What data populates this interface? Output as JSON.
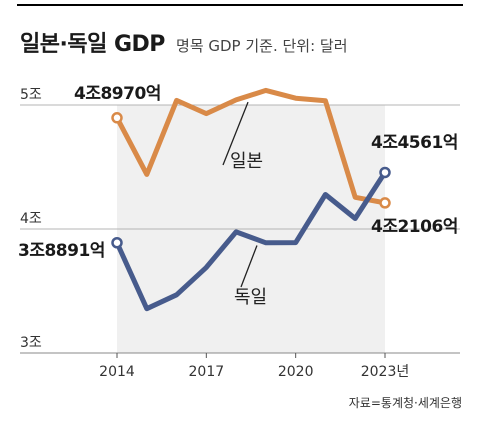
{
  "header": {
    "title": "일본·독일 GDP",
    "subtitle": "명목 GDP 기준. 단위: 달러"
  },
  "source": "자료=통계청·세계은행",
  "colors": {
    "japan": "#d98a48",
    "germany": "#475b8c",
    "shade": "#f0f0f0"
  },
  "chart_data": {
    "type": "line",
    "title": "일본·독일 GDP",
    "subtitle": "명목 GDP 기준. 단위: 달러",
    "x": [
      2014,
      2015,
      2016,
      2017,
      2018,
      2019,
      2020,
      2021,
      2022,
      2023
    ],
    "x_tick_values": [
      2014,
      2017,
      2020,
      2023
    ],
    "x_tick_labels": [
      "2014",
      "2017",
      "2020",
      "2023년"
    ],
    "y_tick_values": [
      3,
      4,
      5
    ],
    "y_tick_labels": [
      "3조",
      "4조",
      "5조"
    ],
    "ylim": [
      3,
      5
    ],
    "grid": "horizontal",
    "series": [
      {
        "name": "일본",
        "values": [
          4.897,
          4.44,
          5.037,
          4.931,
          5.041,
          5.118,
          5.055,
          5.034,
          4.256,
          4.2106
        ],
        "start_label": "4조8970억",
        "end_label": "4조2106억"
      },
      {
        "name": "독일",
        "values": [
          3.8891,
          3.357,
          3.469,
          3.69,
          3.977,
          3.889,
          3.89,
          4.278,
          4.085,
          4.4561
        ],
        "start_label": "3조8891억",
        "end_label": "4조4561억"
      }
    ]
  }
}
